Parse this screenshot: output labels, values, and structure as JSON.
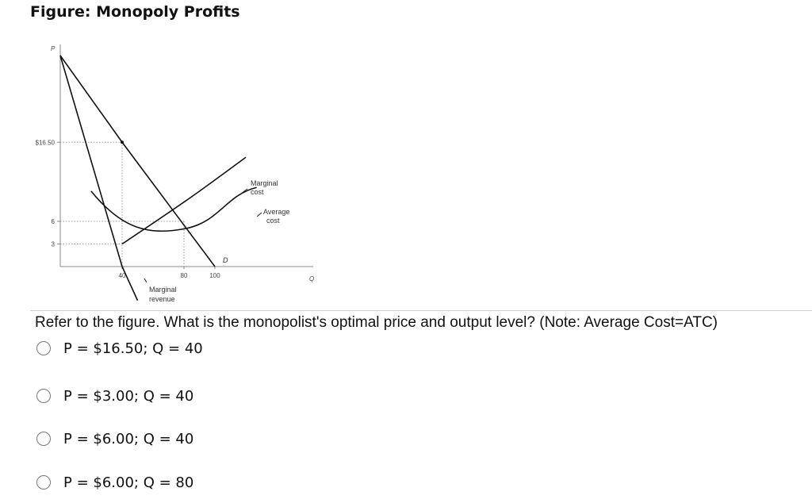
{
  "figure": {
    "title": "Figure: Monopoly Profits"
  },
  "chart_data": {
    "type": "line",
    "axes": {
      "y_label": "P",
      "x_label": "Q",
      "xlim": [
        0,
        140
      ],
      "ylim": [
        0,
        30
      ],
      "grid": false
    },
    "y_ticks": [
      {
        "label": "$16.50",
        "value": 16.5
      },
      {
        "label": "6",
        "value": 6
      },
      {
        "label": "3",
        "value": 3
      }
    ],
    "x_ticks": [
      {
        "label": "40",
        "value": 40
      },
      {
        "label": "80",
        "value": 80
      },
      {
        "label": "100",
        "value": 100
      }
    ],
    "series": [
      {
        "name": "D",
        "x": [
          0,
          40,
          100
        ],
        "y": [
          28,
          16.5,
          0
        ]
      },
      {
        "name": "Marginal revenue",
        "x": [
          0,
          40,
          50
        ],
        "y": [
          28,
          0,
          -4.5
        ]
      },
      {
        "name": "Marginal cost",
        "x": [
          40,
          90,
          120
        ],
        "y": [
          3,
          10,
          14.5
        ]
      },
      {
        "name": "Average cost",
        "x": [
          20,
          40,
          80,
          127
        ],
        "y": [
          10,
          6,
          5,
          10.5
        ]
      }
    ],
    "reference_lines": [
      {
        "from": [
          0,
          16.5
        ],
        "to": [
          40,
          16.5
        ]
      },
      {
        "from": [
          40,
          16.5
        ],
        "to": [
          40,
          0
        ]
      },
      {
        "from": [
          0,
          6
        ],
        "to": [
          40,
          6
        ]
      },
      {
        "from": [
          0,
          3
        ],
        "to": [
          40,
          3
        ]
      },
      {
        "from": [
          40,
          6
        ],
        "to": [
          80,
          6
        ]
      },
      {
        "from": [
          80,
          6
        ],
        "to": [
          80,
          0
        ]
      }
    ],
    "curve_labels": {
      "mc_line1": "Marginal",
      "mc_line2": "cost",
      "ac_line1": "Average",
      "ac_line2": "cost",
      "mr_line1": "Marginal",
      "mr_line2": "revenue",
      "d": "D"
    }
  },
  "question": {
    "text": "Refer to the figure. What is the monopolist's optimal price and output level? (Note: Average Cost=ATC)",
    "options": [
      {
        "label": "P = $16.50; Q = 40"
      },
      {
        "label": "P = $3.00; Q = 40"
      },
      {
        "label": "P = $6.00; Q = 40"
      },
      {
        "label": "P = $6.00; Q = 80"
      }
    ]
  }
}
